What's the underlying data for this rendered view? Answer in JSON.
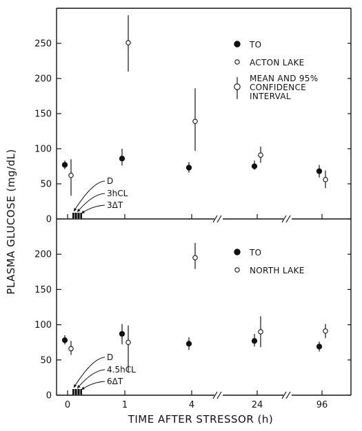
{
  "chart_data": {
    "type": "scatter",
    "ylabel": "PLASMA GLUCOSE (mg/dL)",
    "xlabel": "TIME AFTER STRESSOR (h)",
    "x_tick_labels": [
      "0",
      "1",
      "4",
      "24",
      "96"
    ],
    "axis_breaks_between": [
      [
        "4",
        "24"
      ],
      [
        "24",
        "96"
      ]
    ],
    "panels": [
      {
        "ylim": [
          0,
          300
        ],
        "yticks": [
          "0",
          "50",
          "100",
          "150",
          "200",
          "250"
        ],
        "legend_placement": "top-right",
        "legend": {
          "series_a": "TO",
          "series_b": "ACTON LAKE",
          "errorbar_line1": "MEAN AND 95%",
          "errorbar_line2": "CONFIDENCE",
          "errorbar_line3": "INTERVAL"
        },
        "series": [
          {
            "name": "TO",
            "marker": "filled-circle",
            "points": [
              {
                "x": "0",
                "y": 77,
                "lo": 71,
                "hi": 83
              },
              {
                "x": "1",
                "y": 86,
                "lo": 76,
                "hi": 100
              },
              {
                "x": "4",
                "y": 73,
                "lo": 66,
                "hi": 81
              },
              {
                "x": "24",
                "y": 75,
                "lo": 70,
                "hi": 83
              },
              {
                "x": "96",
                "y": 68,
                "lo": 59,
                "hi": 77
              }
            ]
          },
          {
            "name": "ACTON LAKE",
            "marker": "open-circle",
            "points": [
              {
                "x": "0",
                "y": 62,
                "lo": 33,
                "hi": 85
              },
              {
                "x": "1",
                "y": 251,
                "lo": 210,
                "hi": 290
              },
              {
                "x": "4",
                "y": 139,
                "lo": 97,
                "hi": 186
              },
              {
                "x": "24",
                "y": 91,
                "lo": 80,
                "hi": 103
              },
              {
                "x": "96",
                "y": 56,
                "lo": 44,
                "hi": 69
              }
            ]
          }
        ],
        "annotations": [
          "D",
          "3hCL",
          "3ΔT"
        ]
      },
      {
        "ylim": [
          0,
          250
        ],
        "yticks": [
          "0",
          "50",
          "100",
          "150",
          "200"
        ],
        "legend_placement": "top-right",
        "legend": {
          "series_a": "TO",
          "series_b": "NORTH LAKE"
        },
        "series": [
          {
            "name": "TO",
            "marker": "filled-circle",
            "points": [
              {
                "x": "0",
                "y": 78,
                "lo": 72,
                "hi": 85
              },
              {
                "x": "1",
                "y": 87,
                "lo": 72,
                "hi": 101
              },
              {
                "x": "4",
                "y": 73,
                "lo": 64,
                "hi": 82
              },
              {
                "x": "24",
                "y": 77,
                "lo": 69,
                "hi": 87
              },
              {
                "x": "96",
                "y": 69,
                "lo": 62,
                "hi": 76
              }
            ]
          },
          {
            "name": "NORTH LAKE",
            "marker": "open-circle",
            "points": [
              {
                "x": "0",
                "y": 66,
                "lo": 57,
                "hi": 77
              },
              {
                "x": "1",
                "y": 75,
                "lo": 32,
                "hi": 99
              },
              {
                "x": "4",
                "y": 195,
                "lo": 179,
                "hi": 216
              },
              {
                "x": "24",
                "y": 90,
                "lo": 68,
                "hi": 112
              },
              {
                "x": "96",
                "y": 91,
                "lo": 81,
                "hi": 101
              }
            ]
          }
        ],
        "annotations": [
          "D",
          "4.5hCL",
          "6ΔT"
        ]
      }
    ]
  }
}
